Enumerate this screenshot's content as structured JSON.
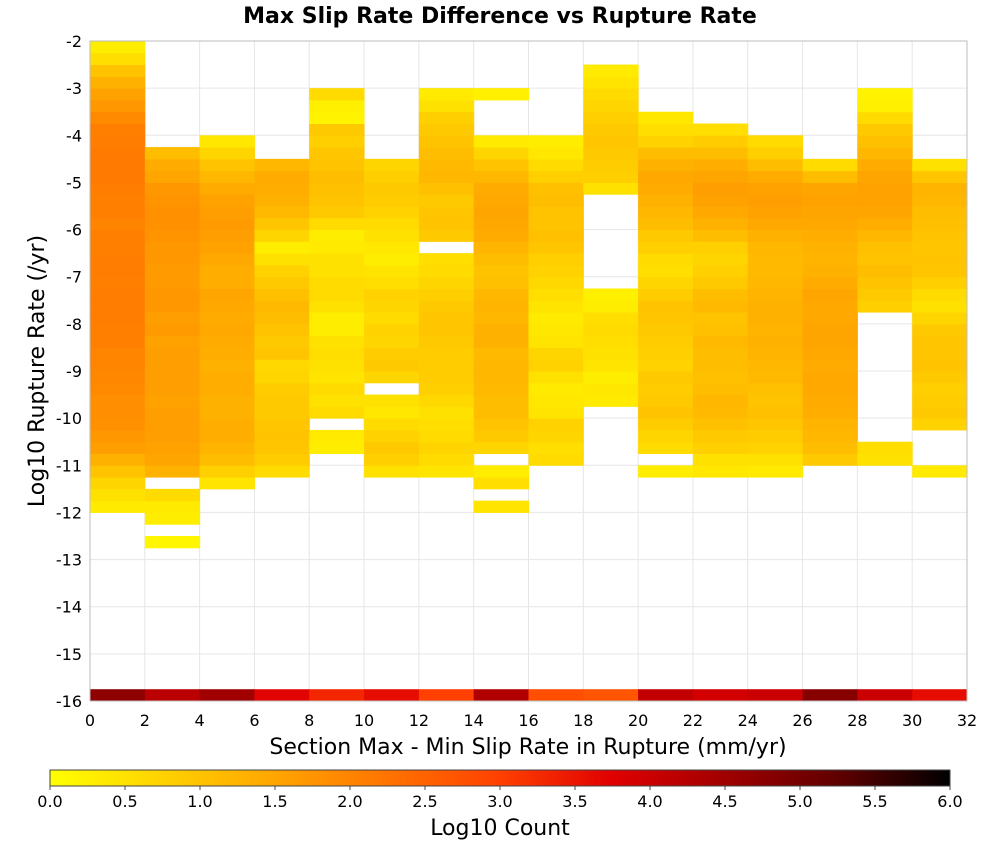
{
  "chart_data": {
    "type": "heatmap",
    "title": "Max Slip Rate Difference vs Rupture Rate",
    "xlabel": "Section Max - Min Slip Rate in Rupture (mm/yr)",
    "ylabel": "Log10 Rupture Rate (/yr)",
    "xlim": [
      0,
      32
    ],
    "ylim": [
      -16,
      -2
    ],
    "x_ticks": [
      "0",
      "2",
      "4",
      "6",
      "8",
      "10",
      "12",
      "14",
      "16",
      "18",
      "20",
      "22",
      "24",
      "26",
      "28",
      "30",
      "32"
    ],
    "y_ticks": [
      "-16",
      "-15",
      "-14",
      "-13",
      "-12",
      "-11",
      "-10",
      "-9",
      "-8",
      "-7",
      "-6",
      "-5",
      "-4",
      "-3",
      "-2"
    ],
    "x_bin_width": 2,
    "y_bin_height": 0.25,
    "y_bin_start": -12.75,
    "colorbar": {
      "label": "Log10 Count",
      "range": [
        0.0,
        6.0
      ],
      "ticks": [
        "0.0",
        "0.5",
        "1.0",
        "1.5",
        "2.0",
        "2.5",
        "3.0",
        "3.5",
        "4.0",
        "4.5",
        "5.0",
        "5.5",
        "6.0"
      ],
      "stops": [
        "#ffff00",
        "#ffd200",
        "#ffa500",
        "#ff7300",
        "#ff4000",
        "#e00000",
        "#a00000",
        "#600000",
        "#000000"
      ]
    },
    "columns": [
      {
        "x": 0,
        "values": [
          null,
          null,
          null,
          0.35,
          0.5,
          0.7,
          1.0,
          1.3,
          1.6,
          1.7,
          1.8,
          1.85,
          1.85,
          1.9,
          1.95,
          2.0,
          2.0,
          2.05,
          2.05,
          2.1,
          2.1,
          2.1,
          2.05,
          2.1,
          2.1,
          2.05,
          2.05,
          2.0,
          2.05,
          2.05,
          2.1,
          2.15,
          2.15,
          2.15,
          2.1,
          2.05,
          1.9,
          1.7,
          1.55,
          1.3,
          1.0,
          0.55,
          0.3,
          null,
          null,
          null,
          null,
          null,
          null,
          null,
          null
        ]
      },
      {
        "x": 2,
        "values": [
          0.15,
          null,
          0.3,
          0.35,
          0.6,
          null,
          1.3,
          1.5,
          1.55,
          1.6,
          1.6,
          1.6,
          1.55,
          1.6,
          1.6,
          1.6,
          1.6,
          1.55,
          1.65,
          1.6,
          1.7,
          1.7,
          1.65,
          1.65,
          1.7,
          1.7,
          1.75,
          1.8,
          1.8,
          1.75,
          1.7,
          1.5,
          1.4,
          1.1,
          null,
          null,
          null,
          null,
          null,
          null,
          null,
          null,
          null,
          null,
          null,
          null,
          null,
          null,
          null,
          null,
          null
        ]
      },
      {
        "x": 4,
        "values": [
          null,
          null,
          null,
          null,
          null,
          0.45,
          0.8,
          1.1,
          1.25,
          1.35,
          1.35,
          1.3,
          1.3,
          1.35,
          1.35,
          1.3,
          1.35,
          1.4,
          1.45,
          1.4,
          1.45,
          1.5,
          1.35,
          1.35,
          1.45,
          1.55,
          1.6,
          1.65,
          1.6,
          1.55,
          1.4,
          1.2,
          1.0,
          0.7,
          0.4,
          null,
          null,
          null,
          null,
          null,
          null,
          null,
          null,
          null,
          null,
          null,
          null,
          null,
          null,
          null,
          null
        ]
      },
      {
        "x": 6,
        "values": [
          null,
          null,
          null,
          null,
          null,
          null,
          0.6,
          0.85,
          0.95,
          1.0,
          0.95,
          0.9,
          0.9,
          0.85,
          0.7,
          0.65,
          0.95,
          0.9,
          1.0,
          1.1,
          1.15,
          1.05,
          0.9,
          0.75,
          0.5,
          0.3,
          0.7,
          0.95,
          1.15,
          1.3,
          1.35,
          1.4,
          1.2,
          null,
          null,
          null,
          null,
          null,
          null,
          null,
          null,
          null,
          null,
          null,
          null,
          null,
          null,
          null,
          null,
          null,
          null
        ]
      },
      {
        "x": 8,
        "values": [
          null,
          null,
          null,
          null,
          null,
          null,
          null,
          null,
          0.3,
          0.35,
          null,
          0.6,
          0.5,
          0.6,
          0.45,
          0.5,
          0.55,
          0.5,
          0.3,
          0.3,
          0.5,
          0.6,
          0.6,
          0.5,
          0.5,
          0.35,
          0.3,
          0.6,
          0.9,
          1.0,
          1.05,
          1.1,
          1.0,
          0.95,
          0.8,
          0.9,
          0.2,
          0.25,
          0.6,
          null,
          null,
          null,
          null,
          null,
          null,
          null,
          null,
          null,
          null,
          null,
          null
        ]
      },
      {
        "x": 10,
        "values": [
          null,
          null,
          null,
          null,
          null,
          null,
          0.5,
          0.8,
          0.9,
          0.75,
          0.6,
          0.4,
          0.5,
          null,
          0.7,
          0.9,
          0.85,
          0.7,
          0.75,
          0.6,
          0.7,
          0.75,
          0.55,
          0.45,
          0.3,
          0.4,
          0.5,
          0.6,
          0.75,
          0.85,
          0.9,
          0.8,
          0.7,
          null,
          null,
          null,
          null,
          null,
          null,
          null,
          null,
          null,
          null,
          null,
          null,
          null,
          null,
          null,
          null,
          null,
          null
        ]
      },
      {
        "x": 12,
        "values": [
          null,
          null,
          null,
          null,
          null,
          null,
          0.45,
          0.6,
          0.7,
          0.6,
          0.55,
          0.5,
          0.65,
          0.8,
          0.85,
          0.85,
          0.85,
          0.9,
          0.95,
          0.95,
          0.9,
          0.8,
          0.7,
          0.6,
          0.55,
          null,
          0.9,
          1.0,
          0.95,
          0.9,
          1.05,
          1.2,
          1.15,
          1.1,
          1.0,
          0.9,
          0.8,
          0.5,
          0.35,
          null,
          null,
          null,
          null,
          null,
          null,
          null,
          null,
          null,
          null,
          null,
          null
        ]
      },
      {
        "x": 14,
        "values": [
          null,
          null,
          null,
          0.45,
          null,
          0.55,
          0.3,
          null,
          0.7,
          0.9,
          1.0,
          1.1,
          1.1,
          1.15,
          1.2,
          1.2,
          1.15,
          1.3,
          1.3,
          1.2,
          1.25,
          1.2,
          1.05,
          1.0,
          1.1,
          1.25,
          1.4,
          1.45,
          1.5,
          1.45,
          1.4,
          1.2,
          1.0,
          0.7,
          0.35,
          null,
          null,
          null,
          0.25,
          null,
          null,
          null,
          null,
          null,
          null,
          null,
          null,
          null,
          null,
          null,
          null
        ]
      },
      {
        "x": 16,
        "values": [
          null,
          null,
          null,
          null,
          null,
          null,
          null,
          0.6,
          0.55,
          0.7,
          0.75,
          0.45,
          0.4,
          0.35,
          0.5,
          0.75,
          0.7,
          0.45,
          0.4,
          0.35,
          0.45,
          0.55,
          0.65,
          0.75,
          0.8,
          0.95,
          1.05,
          1.0,
          1.0,
          1.1,
          1.05,
          0.8,
          0.6,
          0.4,
          0.3,
          null,
          null,
          null,
          null,
          null,
          null,
          null,
          null,
          null,
          null,
          null,
          null,
          null,
          null,
          null,
          null
        ]
      },
      {
        "x": 18,
        "values": [
          null,
          null,
          null,
          null,
          null,
          null,
          null,
          null,
          null,
          null,
          null,
          null,
          0.35,
          0.4,
          0.3,
          0.45,
          0.5,
          0.55,
          0.6,
          0.55,
          0.3,
          0.25,
          null,
          null,
          null,
          null,
          null,
          null,
          null,
          null,
          0.5,
          0.8,
          0.85,
          0.9,
          0.95,
          0.9,
          0.8,
          0.7,
          0.6,
          0.45,
          0.35,
          null,
          null,
          null,
          null,
          null,
          null,
          null,
          null,
          null,
          null
        ]
      },
      {
        "x": 20,
        "values": [
          null,
          null,
          null,
          null,
          null,
          null,
          0.3,
          null,
          0.6,
          0.7,
          0.85,
          1.0,
          0.9,
          0.85,
          0.9,
          0.75,
          0.8,
          0.85,
          0.9,
          0.95,
          1.0,
          0.85,
          0.7,
          0.55,
          0.6,
          0.8,
          0.9,
          1.1,
          1.2,
          1.3,
          1.4,
          1.45,
          1.3,
          1.1,
          0.75,
          0.55,
          0.4,
          null,
          null,
          null,
          null,
          null,
          null,
          null,
          null,
          null,
          null,
          null,
          null,
          null,
          null
        ]
      },
      {
        "x": 22,
        "values": [
          null,
          null,
          null,
          null,
          null,
          null,
          0.4,
          0.5,
          0.8,
          0.9,
          1.05,
          1.15,
          1.2,
          1.1,
          1.05,
          1.1,
          1.1,
          1.15,
          1.05,
          1.0,
          1.15,
          1.1,
          0.9,
          0.8,
          0.7,
          0.8,
          1.1,
          1.3,
          1.45,
          1.55,
          1.6,
          1.5,
          1.35,
          1.1,
          0.85,
          0.55,
          null,
          null,
          null,
          null,
          null,
          null,
          null,
          null,
          null,
          null,
          null,
          null,
          null,
          null,
          null
        ]
      },
      {
        "x": 24,
        "values": [
          null,
          null,
          null,
          null,
          null,
          null,
          0.35,
          0.5,
          0.75,
          0.85,
          0.95,
          1.05,
          1.0,
          1.05,
          1.15,
          1.2,
          1.25,
          1.3,
          1.25,
          1.3,
          1.3,
          1.25,
          1.2,
          1.15,
          1.15,
          1.2,
          1.3,
          1.45,
          1.55,
          1.6,
          1.55,
          1.4,
          1.1,
          0.8,
          0.6,
          null,
          null,
          null,
          null,
          null,
          null,
          null,
          null,
          null,
          null,
          null,
          null,
          null,
          null,
          null,
          null
        ]
      },
      {
        "x": 26,
        "values": [
          null,
          null,
          null,
          null,
          null,
          null,
          null,
          0.9,
          1.1,
          1.2,
          1.25,
          1.35,
          1.4,
          1.45,
          1.45,
          1.4,
          1.45,
          1.5,
          1.5,
          1.45,
          1.45,
          1.5,
          1.4,
          1.3,
          1.25,
          1.3,
          1.35,
          1.45,
          1.5,
          1.55,
          1.5,
          1.1,
          0.6,
          null,
          null,
          null,
          null,
          null,
          null,
          null,
          null,
          null,
          null,
          null,
          null,
          null,
          null,
          null,
          null,
          null,
          null
        ]
      },
      {
        "x": 28,
        "values": [
          null,
          null,
          null,
          null,
          null,
          null,
          null,
          0.5,
          0.55,
          null,
          null,
          null,
          null,
          null,
          null,
          null,
          null,
          null,
          null,
          null,
          0.8,
          0.9,
          1.0,
          1.1,
          1.0,
          1.05,
          1.2,
          1.35,
          1.5,
          1.55,
          1.55,
          1.5,
          1.4,
          1.2,
          1.05,
          0.9,
          0.6,
          0.25,
          0.2,
          null,
          null,
          null,
          null,
          null,
          null,
          null,
          null,
          null,
          null,
          null,
          null
        ]
      },
      {
        "x": 30,
        "values": [
          null,
          null,
          null,
          null,
          null,
          null,
          0.35,
          null,
          null,
          null,
          0.75,
          0.9,
          0.85,
          0.8,
          0.9,
          1.0,
          0.95,
          0.95,
          0.9,
          0.7,
          0.5,
          0.6,
          0.8,
          0.95,
          1.0,
          0.95,
          1.0,
          1.05,
          1.1,
          1.2,
          1.25,
          0.95,
          0.5,
          null,
          null,
          null,
          null,
          null,
          null,
          null,
          null,
          null,
          null,
          null,
          null,
          null,
          null,
          null,
          null,
          null,
          null
        ]
      },
      {
        "x": 32,
        "values": [
          null,
          null,
          null,
          null,
          null,
          null,
          null,
          null,
          null,
          null,
          null,
          null,
          null,
          null,
          null,
          null,
          null,
          null,
          null,
          null,
          null,
          null,
          null,
          null,
          null,
          null,
          null,
          null,
          null,
          null,
          null,
          null,
          null,
          null,
          null,
          null,
          null,
          null,
          null,
          null,
          null,
          null,
          null,
          null,
          null,
          null,
          null,
          null,
          null,
          null,
          null
        ]
      }
    ],
    "bottom_row": {
      "y": -16,
      "x_bins": [
        0,
        2,
        4,
        6,
        8,
        10,
        12,
        14,
        16,
        18,
        20,
        22,
        24,
        26,
        28,
        30
      ],
      "values": [
        4.7,
        4.2,
        4.5,
        3.7,
        3.3,
        3.6,
        3.0,
        4.3,
        2.8,
        2.7,
        4.1,
        3.9,
        4.0,
        4.8,
        4.0,
        3.6
      ]
    }
  }
}
